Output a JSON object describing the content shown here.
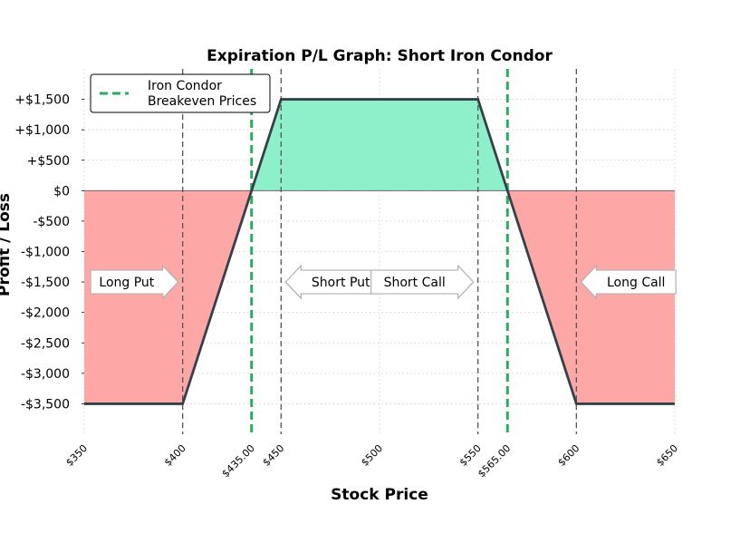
{
  "chart_data": {
    "type": "line",
    "title": "Expiration P/L Graph: Short Iron Condor",
    "xlabel": "Stock Price",
    "ylabel": "Profit / Loss",
    "xlim": [
      350,
      650
    ],
    "ylim": [
      -4000,
      2000
    ],
    "x_ticks": [
      350,
      400,
      450,
      500,
      550,
      600,
      650
    ],
    "x_tick_labels": [
      "$350",
      "$400",
      "$450",
      "$500",
      "$550",
      "$600",
      "$650"
    ],
    "breakeven_tick_labels": [
      "$435.00",
      "$565.00"
    ],
    "y_ticks": [
      1500,
      1000,
      500,
      0,
      -500,
      -1000,
      -1500,
      -2000,
      -2500,
      -3000,
      -3500
    ],
    "y_tick_labels": [
      "+$1,500",
      "+$1,000",
      "+$500",
      "$0",
      "-$500",
      "-$1,000",
      "-$1,500",
      "-$2,000",
      "-$2,500",
      "-$3,000",
      "-$3,500"
    ],
    "series": [
      {
        "name": "",
        "x": [
          350,
          400,
          450,
          550,
          600,
          650
        ],
        "y": [
          -3500,
          -3500,
          1500,
          1500,
          -3500,
          -3500
        ]
      }
    ],
    "strikes": [
      400,
      450,
      550,
      600
    ],
    "breakevens": [
      435,
      565
    ],
    "legend": {
      "label": "Iron Condor\nBreakeven Prices",
      "position": "top-left"
    },
    "callouts": [
      {
        "label": "Long Put",
        "x": 400,
        "direction": "right"
      },
      {
        "label": "Short Put",
        "x": 450,
        "direction": "left"
      },
      {
        "label": "Short Call",
        "x": 550,
        "direction": "right"
      },
      {
        "label": "Long Call",
        "x": 600,
        "direction": "left"
      }
    ],
    "grid": true,
    "colors": {
      "payoff": "#36404a",
      "profit_fill": "#8ef0cb",
      "loss_fill": "#fda7a7",
      "breakeven": "#2aaa5f",
      "strike": "#555555",
      "grid": "#cccccc"
    }
  }
}
